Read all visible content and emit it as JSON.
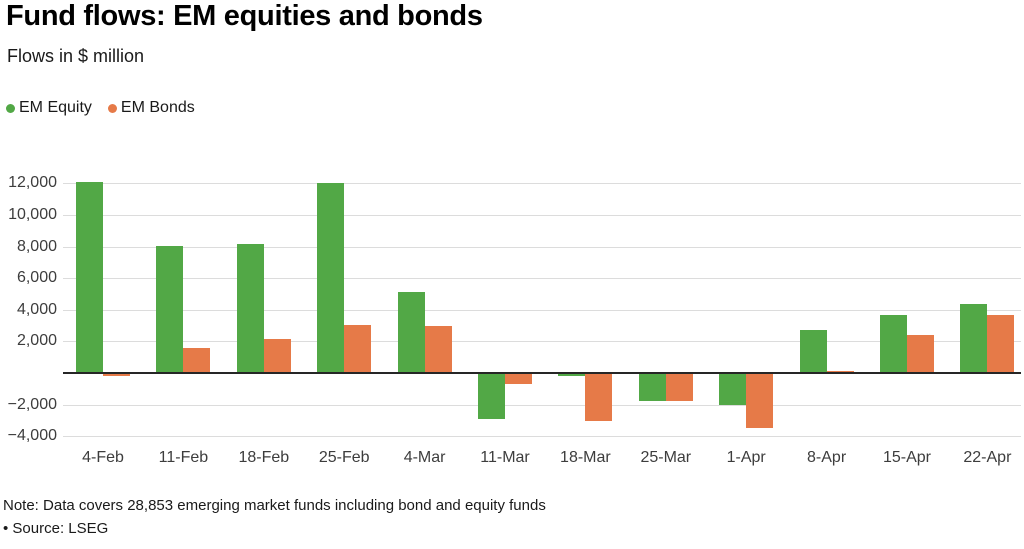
{
  "header": {
    "title": "Fund flows: EM equities and bonds",
    "subtitle": "Flows in $ million"
  },
  "legend": [
    {
      "label": "EM Equity",
      "color": "#52a846"
    },
    {
      "label": "EM Bonds",
      "color": "#e67a48"
    }
  ],
  "footer": {
    "note": "Note: Data covers 28,853 emerging market funds including bond and equity funds",
    "source": "• Source: LSEG"
  },
  "chart_data": {
    "type": "bar",
    "title": "Fund flows: EM equities and bonds",
    "subtitle": "Flows in $ million",
    "unit": "$ million",
    "categories": [
      "4-Feb",
      "11-Feb",
      "18-Feb",
      "25-Feb",
      "4-Mar",
      "11-Mar",
      "18-Mar",
      "25-Mar",
      "1-Apr",
      "8-Apr",
      "15-Apr",
      "22-Apr"
    ],
    "series": [
      {
        "name": "EM Equity",
        "color": "#52a846",
        "values": [
          12100,
          8050,
          8150,
          12000,
          5100,
          -2850,
          -150,
          -1700,
          -1950,
          2750,
          3700,
          4350
        ]
      },
      {
        "name": "EM Bonds",
        "color": "#e67a48",
        "values": [
          -150,
          1600,
          2150,
          3050,
          2950,
          -650,
          -3000,
          -1700,
          -3400,
          150,
          2400,
          3650
        ]
      }
    ],
    "ylim": [
      -4400,
      12400
    ],
    "yticks": [
      12000,
      10000,
      8000,
      6000,
      4000,
      2000,
      -2000,
      -4000
    ],
    "ytick_labels": [
      "12,000",
      "10,000",
      "8,000",
      "6,000",
      "4,000",
      "2,000",
      "−2,000",
      "−4,000"
    ],
    "grid": true,
    "legend_position": "top-left",
    "style": {
      "grid_color": "#dcdcdc",
      "zero_line_color": "#262626",
      "text_color": "#3d3d3d"
    }
  }
}
